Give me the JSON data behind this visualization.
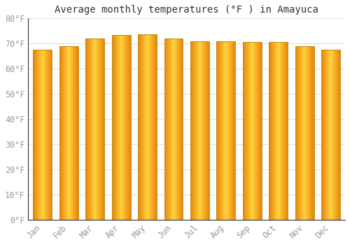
{
  "title": "Average monthly temperatures (°F ) in Amayuca",
  "categories": [
    "Jan",
    "Feb",
    "Mar",
    "Apr",
    "May",
    "Jun",
    "Jul",
    "Aug",
    "Sep",
    "Oct",
    "Nov",
    "Dec"
  ],
  "values": [
    67.5,
    69.0,
    72.0,
    73.5,
    73.8,
    72.0,
    71.0,
    71.0,
    70.5,
    70.5,
    69.0,
    67.5
  ],
  "bar_color_left": "#E8820A",
  "bar_color_center": "#FFCC33",
  "bar_color_right": "#F0900A",
  "bar_edge_color": "#B8860B",
  "background_color": "#ffffff",
  "plot_bg_color": "#f8f8f8",
  "grid_color": "#e0e0e0",
  "text_color": "#999999",
  "title_color": "#333333",
  "ylim": [
    0,
    80
  ],
  "yticks": [
    0,
    10,
    20,
    30,
    40,
    50,
    60,
    70,
    80
  ],
  "ytick_labels": [
    "0°F",
    "10°F",
    "20°F",
    "30°F",
    "40°F",
    "50°F",
    "60°F",
    "70°F",
    "80°F"
  ],
  "title_fontsize": 10,
  "tick_fontsize": 8.5,
  "bar_width": 0.72
}
